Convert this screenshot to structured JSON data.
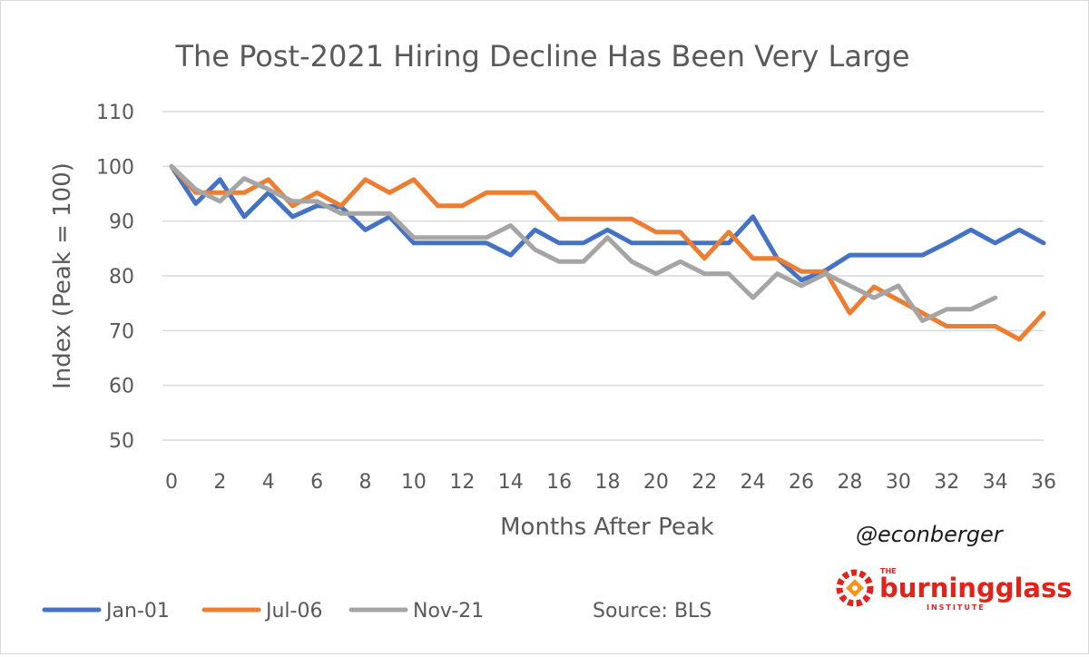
{
  "chart_data": {
    "type": "line",
    "title": "The Post-2021 Hiring Decline Has Been Very Large",
    "xlabel": "Months After Peak",
    "ylabel": "Index (Peak = 100)",
    "xlim": [
      0,
      36
    ],
    "ylim": [
      50,
      110
    ],
    "y_ticks": [
      "50",
      "60",
      "70",
      "80",
      "90",
      "100",
      "110"
    ],
    "x_ticks": [
      "0",
      "2",
      "4",
      "6",
      "8",
      "10",
      "12",
      "14",
      "16",
      "18",
      "20",
      "22",
      "24",
      "26",
      "28",
      "30",
      "32",
      "34",
      "36"
    ],
    "grid": "horizontal",
    "legend_position": "bottom-left",
    "series": [
      {
        "name": "Jan-01",
        "color": "#4472c4",
        "values": [
          100,
          93.2,
          97.6,
          90.8,
          95.2,
          90.8,
          92.8,
          92.6,
          88.4,
          90.8,
          86,
          86,
          86,
          86,
          83.8,
          88.4,
          86,
          86,
          88.4,
          86,
          86,
          86,
          86,
          86,
          90.8,
          83.2,
          79.2,
          81,
          83.8,
          83.8,
          83.8,
          83.8,
          86,
          88.4,
          86,
          88.4,
          86
        ]
      },
      {
        "name": "Jul-06",
        "color": "#ed7d31",
        "values": [
          100,
          95.2,
          95.2,
          95.2,
          97.6,
          92.8,
          95.2,
          92.8,
          97.6,
          95.2,
          97.6,
          92.8,
          92.8,
          95.2,
          95.2,
          95.2,
          90.4,
          90.4,
          90.4,
          90.4,
          88,
          88,
          83.2,
          88,
          83.2,
          83.2,
          80.8,
          80.8,
          73.2,
          78,
          75.6,
          73.2,
          70.8,
          70.8,
          70.8,
          68.4,
          73.2
        ]
      },
      {
        "name": "Nov-21",
        "color": "#a5a5a5",
        "values": [
          100,
          95.8,
          93.6,
          97.8,
          95.8,
          93.6,
          93.6,
          91.4,
          91.4,
          91.4,
          87,
          87,
          87,
          87,
          89.2,
          84.8,
          82.6,
          82.6,
          87,
          82.6,
          80.4,
          82.6,
          80.4,
          80.4,
          76,
          80.4,
          78.2,
          80.4,
          78.2,
          76,
          78.2,
          71.8,
          73.9,
          73.9,
          76
        ]
      }
    ],
    "annotations": {
      "handle": "@econberger",
      "source": "Source: BLS",
      "brand_top": "THE",
      "brand_name": "burningglass",
      "brand_bottom": "INSTITUTE",
      "brand_color": "#e2231a"
    }
  }
}
